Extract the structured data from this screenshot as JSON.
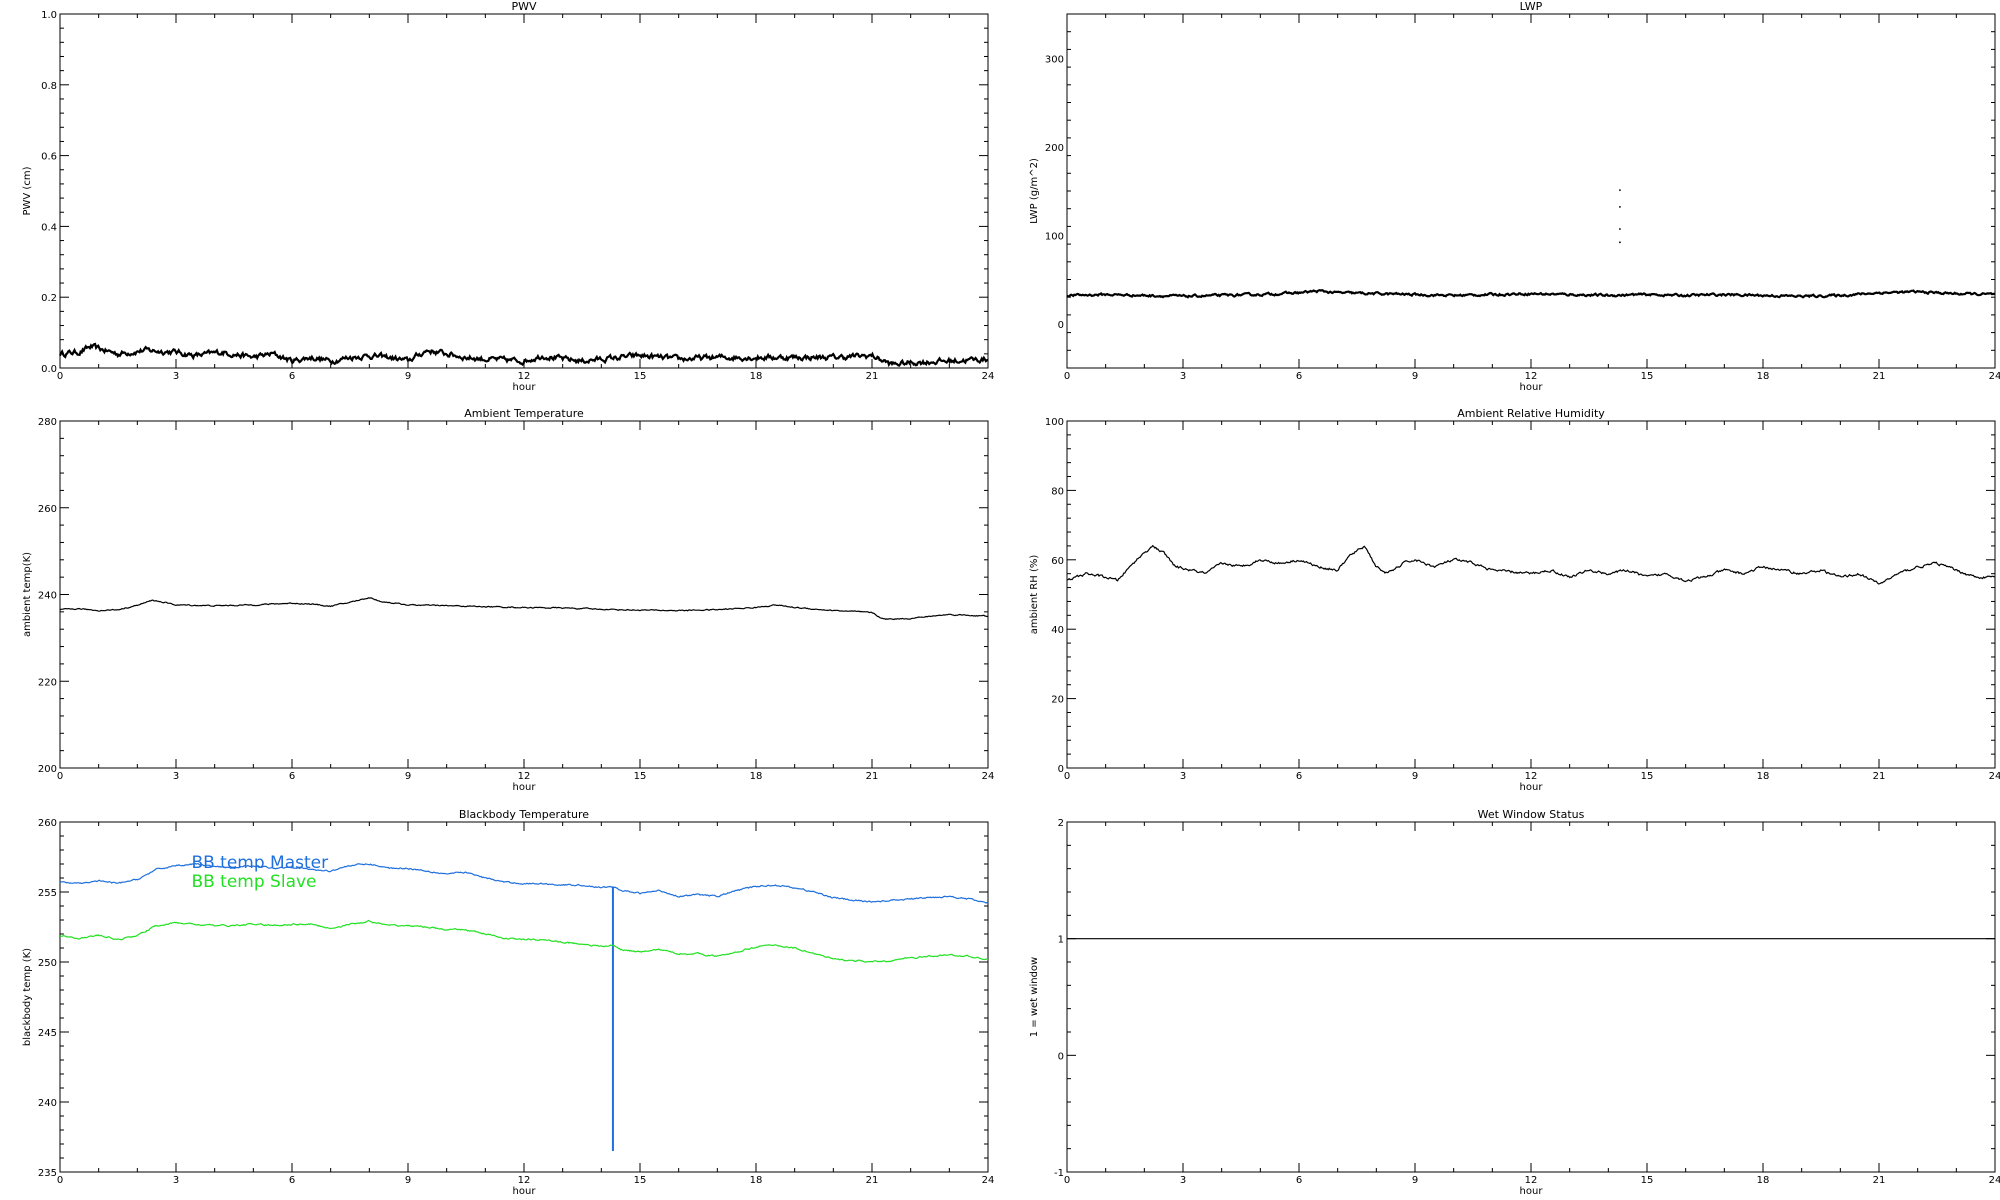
{
  "colors": {
    "black": "#000000",
    "master": "#1f6fdc",
    "slave": "#22e022"
  },
  "chart_data": [
    {
      "id": "pwv",
      "type": "line",
      "title": "PWV",
      "xlabel": "hour",
      "ylabel": "PWV (cm)",
      "xlim": [
        0,
        24
      ],
      "ylim": [
        0,
        1
      ],
      "xticks": [
        0,
        3,
        6,
        9,
        12,
        15,
        18,
        21,
        24
      ],
      "yticks": [
        0.0,
        0.2,
        0.4,
        0.6,
        0.8,
        1.0
      ],
      "ytick_labels": [
        "0.0",
        "0.2",
        "0.4",
        "0.6",
        "0.8",
        "1.0"
      ],
      "series": [
        {
          "color": "#000000",
          "noise": 0.007,
          "x": [
            0,
            0.5,
            0.8,
            1.5,
            2.2,
            3,
            3.5,
            4.2,
            5,
            5.5,
            6,
            6.5,
            7,
            7.5,
            8,
            8.5,
            9,
            9.5,
            10,
            10.5,
            11,
            12,
            12.5,
            13,
            13.5,
            14,
            14.5,
            15,
            15.5,
            16,
            17,
            18,
            19,
            20,
            21,
            21.5,
            22,
            23,
            24
          ],
          "y": [
            0.04,
            0.045,
            0.06,
            0.04,
            0.05,
            0.045,
            0.035,
            0.045,
            0.03,
            0.04,
            0.02,
            0.03,
            0.02,
            0.03,
            0.035,
            0.03,
            0.02,
            0.05,
            0.04,
            0.03,
            0.025,
            0.02,
            0.035,
            0.025,
            0.02,
            0.025,
            0.03,
            0.035,
            0.03,
            0.025,
            0.03,
            0.03,
            0.03,
            0.03,
            0.035,
            0.01,
            0.015,
            0.02,
            0.025
          ]
        }
      ]
    },
    {
      "id": "lwp",
      "type": "line",
      "title": "LWP",
      "xlabel": "hour",
      "ylabel": "LWP (g/m^2)",
      "xlim": [
        0,
        24
      ],
      "ylim": [
        -50,
        350
      ],
      "xticks": [
        0,
        3,
        6,
        9,
        12,
        15,
        18,
        21,
        24
      ],
      "yticks": [
        0,
        100,
        200,
        300
      ],
      "ytick_labels": [
        "0",
        "100",
        "200",
        "300"
      ],
      "series": [
        {
          "color": "#000000",
          "noise": 1.2,
          "x": [
            0,
            1,
            2,
            3,
            4,
            5,
            6,
            6.5,
            7,
            8,
            9,
            10,
            11,
            12,
            13,
            14,
            15,
            16,
            17,
            18,
            19,
            20,
            21,
            22,
            23,
            24
          ],
          "y": [
            32,
            33,
            32,
            31,
            32,
            33,
            35,
            37,
            35,
            34,
            33,
            32,
            33,
            34,
            33,
            32,
            33,
            32,
            33,
            32,
            31,
            32,
            35,
            36,
            34,
            33
          ]
        }
      ],
      "points": {
        "x": [
          14.3,
          14.3,
          14.3,
          14.3
        ],
        "y": [
          151,
          132,
          107,
          92
        ]
      }
    },
    {
      "id": "ambient-temp",
      "type": "line",
      "title": "Ambient Temperature",
      "xlabel": "hour",
      "ylabel": "ambient temp(K)",
      "xlim": [
        0,
        24
      ],
      "ylim": [
        200,
        280
      ],
      "xticks": [
        0,
        3,
        6,
        9,
        12,
        15,
        18,
        21,
        24
      ],
      "yticks": [
        200,
        220,
        240,
        260,
        280
      ],
      "ytick_labels": [
        "200",
        "220",
        "240",
        "260",
        "280"
      ],
      "series": [
        {
          "color": "#000000",
          "noise": 0.12,
          "x": [
            0,
            0.5,
            1,
            1.5,
            2,
            2.4,
            3,
            4,
            5,
            6,
            6.5,
            7,
            7.5,
            8,
            8.3,
            9,
            10,
            11,
            12,
            13,
            14,
            15,
            16,
            17,
            18,
            18.5,
            19,
            20,
            20.5,
            21,
            21.3,
            22,
            23,
            24
          ],
          "y": [
            236.5,
            236.7,
            236.3,
            236.5,
            237.5,
            238.7,
            237.6,
            237.4,
            237.6,
            238.0,
            237.8,
            237.3,
            238.2,
            239.3,
            238.4,
            237.6,
            237.4,
            237.2,
            237.0,
            236.9,
            236.6,
            236.4,
            236.3,
            236.5,
            237.0,
            237.6,
            237.0,
            236.3,
            236.1,
            235.8,
            234.3,
            234.5,
            235.4,
            235.0
          ]
        }
      ]
    },
    {
      "id": "ambient-rh",
      "type": "line",
      "title": "Ambient Relative Humidity",
      "xlabel": "hour",
      "ylabel": "ambient RH (%)",
      "xlim": [
        0,
        24
      ],
      "ylim": [
        0,
        100
      ],
      "xticks": [
        0,
        3,
        6,
        9,
        12,
        15,
        18,
        21,
        24
      ],
      "yticks": [
        0,
        20,
        40,
        60,
        80,
        100
      ],
      "ytick_labels": [
        "0",
        "20",
        "40",
        "60",
        "80",
        "100"
      ],
      "series": [
        {
          "color": "#000000",
          "noise": 0.35,
          "x": [
            0,
            0.5,
            1,
            1.3,
            1.8,
            2.2,
            2.5,
            2.8,
            3.2,
            3.6,
            4,
            4.5,
            5,
            5.5,
            6,
            6.5,
            7,
            7.3,
            7.7,
            8,
            8.3,
            8.7,
            9,
            9.5,
            10,
            10.5,
            11,
            12,
            12.5,
            13,
            13.5,
            14,
            14.5,
            15,
            15.5,
            16,
            16.5,
            17,
            17.5,
            18,
            18.5,
            19,
            19.5,
            20,
            20.5,
            21,
            21.5,
            22,
            22.5,
            23,
            23.5,
            24
          ],
          "y": [
            54,
            56,
            55,
            54,
            60,
            64,
            62,
            58,
            57,
            56,
            59,
            58,
            60,
            59,
            60,
            58,
            57,
            61,
            64,
            58,
            56,
            59,
            60,
            58,
            60,
            59,
            57,
            56,
            57,
            55,
            57,
            56,
            57,
            55,
            56,
            54,
            55,
            57,
            56,
            58,
            57,
            56,
            57,
            55,
            56,
            53,
            56,
            58,
            59,
            57,
            55,
            55
          ]
        }
      ]
    },
    {
      "id": "blackbody-temp",
      "type": "line",
      "title": "Blackbody Temperature",
      "xlabel": "hour",
      "ylabel": "blackbody temp (K)",
      "xlim": [
        0,
        24
      ],
      "ylim": [
        235,
        260
      ],
      "xticks": [
        0,
        3,
        6,
        9,
        12,
        15,
        18,
        21,
        24
      ],
      "yticks": [
        235,
        240,
        245,
        250,
        255,
        260
      ],
      "ytick_labels": [
        "235",
        "240",
        "245",
        "250",
        "255",
        "260"
      ],
      "legend": [
        "BB temp Master",
        "BB temp Slave"
      ],
      "series": [
        {
          "name": "BB temp Master",
          "color": "#1f6fdc",
          "noise": 0.05,
          "x": [
            0,
            0.5,
            1,
            1.5,
            2,
            2.5,
            3,
            3.5,
            4,
            4.5,
            5,
            5.5,
            6,
            6.5,
            7,
            7.5,
            8,
            8.5,
            9,
            9.5,
            10,
            10.5,
            11,
            11.5,
            12,
            12.5,
            13,
            13.5,
            14,
            14.3,
            14.5,
            15,
            15.5,
            16,
            16.5,
            17,
            17.5,
            18,
            18.5,
            19,
            19.5,
            20,
            20.5,
            21,
            21.5,
            22,
            22.5,
            23,
            23.5,
            24
          ],
          "y": [
            255.7,
            255.6,
            255.8,
            255.6,
            255.9,
            256.6,
            256.9,
            257.0,
            256.8,
            256.7,
            256.9,
            256.7,
            256.8,
            256.6,
            256.5,
            256.9,
            257.0,
            256.7,
            256.7,
            256.5,
            256.3,
            256.4,
            256.0,
            255.7,
            255.6,
            255.6,
            255.5,
            255.5,
            255.3,
            255.4,
            255.1,
            254.9,
            255.1,
            254.7,
            254.8,
            254.7,
            255.1,
            255.4,
            255.5,
            255.3,
            255.0,
            254.6,
            254.4,
            254.3,
            254.4,
            254.5,
            254.6,
            254.7,
            254.5,
            254.2
          ],
          "spike": {
            "x": 14.3,
            "y": [
              255.4,
              236.5
            ]
          }
        },
        {
          "name": "BB temp Slave",
          "color": "#22e022",
          "noise": 0.05,
          "x": [
            0,
            0.5,
            1,
            1.5,
            2,
            2.5,
            3,
            3.5,
            4,
            4.5,
            5,
            5.5,
            6,
            6.5,
            7,
            7.5,
            8,
            8.5,
            9,
            9.5,
            10,
            10.5,
            11,
            11.5,
            12,
            12.5,
            13,
            13.5,
            14,
            14.3,
            14.5,
            15,
            15.5,
            16,
            16.5,
            17,
            17.5,
            18,
            18.5,
            19,
            19.5,
            20,
            20.5,
            21,
            21.5,
            22,
            22.5,
            23,
            23.5,
            24
          ],
          "y": [
            251.9,
            251.7,
            251.9,
            251.6,
            251.9,
            252.6,
            252.8,
            252.7,
            252.6,
            252.6,
            252.7,
            252.6,
            252.7,
            252.7,
            252.4,
            252.7,
            252.9,
            252.6,
            252.6,
            252.5,
            252.3,
            252.3,
            252.0,
            251.7,
            251.6,
            251.6,
            251.4,
            251.3,
            251.1,
            251.2,
            250.9,
            250.7,
            250.9,
            250.6,
            250.6,
            250.4,
            250.7,
            251.1,
            251.2,
            251.0,
            250.6,
            250.2,
            250.1,
            250.0,
            250.1,
            250.3,
            250.4,
            250.5,
            250.4,
            250.2
          ]
        }
      ]
    },
    {
      "id": "wet-window",
      "type": "line",
      "title": "Wet Window Status",
      "xlabel": "hour",
      "ylabel": "1 = wet window",
      "xlim": [
        0,
        24
      ],
      "ylim": [
        -1,
        2
      ],
      "xticks": [
        0,
        3,
        6,
        9,
        12,
        15,
        18,
        21,
        24
      ],
      "yticks": [
        -1,
        0,
        1,
        2
      ],
      "ytick_labels": [
        "-1",
        "0",
        "1",
        "2"
      ],
      "series": [
        {
          "color": "#000000",
          "noise": 0,
          "x": [
            0,
            24
          ],
          "y": [
            1,
            1
          ]
        }
      ]
    }
  ]
}
